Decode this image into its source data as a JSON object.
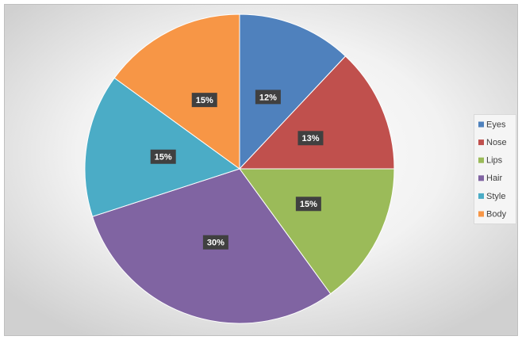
{
  "chart_data": {
    "type": "pie",
    "categories": [
      "Eyes",
      "Nose",
      "Lips",
      "Hair",
      "Style",
      "Body"
    ],
    "values": [
      12,
      13,
      15,
      30,
      15,
      15
    ],
    "value_labels": [
      "12%",
      "13%",
      "15%",
      "30%",
      "15%",
      "15%"
    ],
    "colors": [
      "#4f81bd",
      "#c0504d",
      "#9bbb59",
      "#8064a2",
      "#4bacc6",
      "#f79646"
    ],
    "legend": "right"
  }
}
